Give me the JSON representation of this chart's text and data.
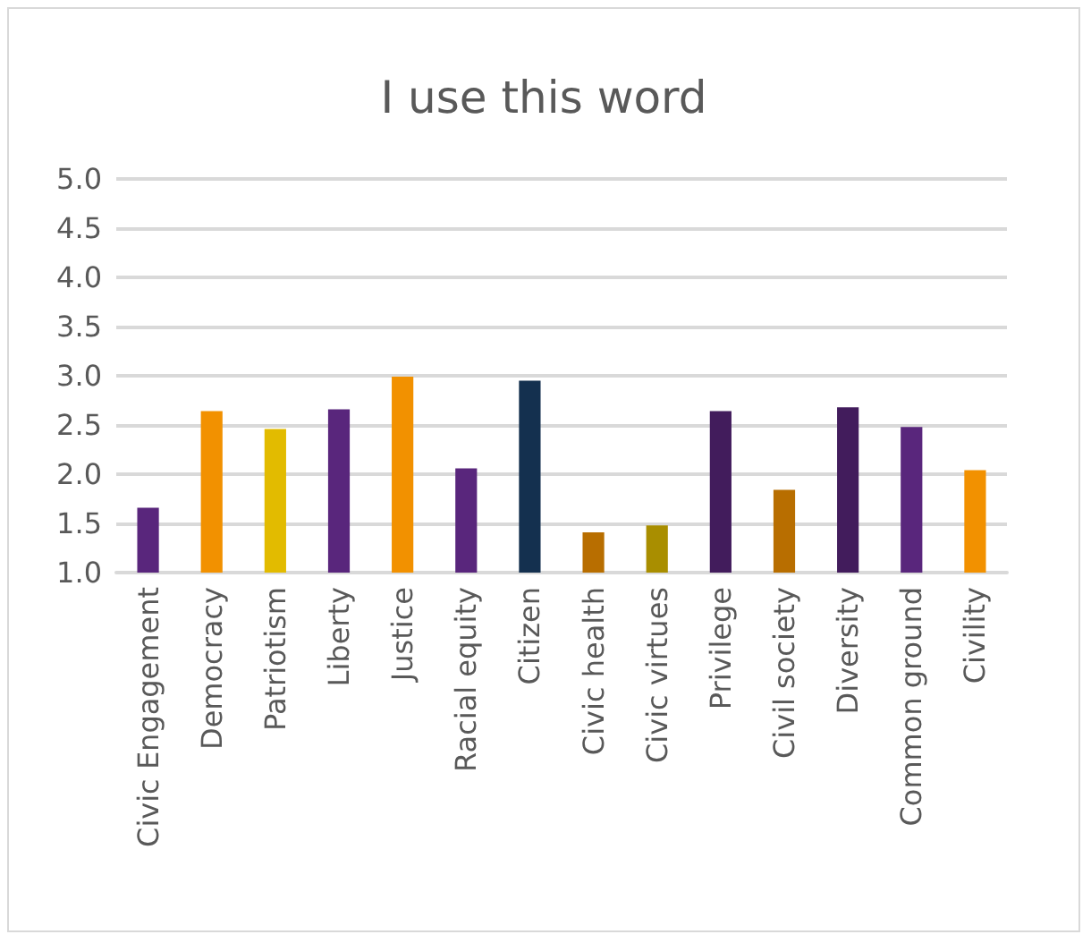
{
  "chart_data": {
    "type": "bar",
    "title": "I use this word",
    "categories": [
      "Civic Engagement",
      "Democracy",
      "Patriotism",
      "Liberty",
      "Justice",
      "Racial equity",
      "Citizen",
      "Civic health",
      "Civic virtues",
      "Privilege",
      "Civil society",
      "Diversity",
      "Common ground",
      "Civility"
    ],
    "values": [
      1.66,
      2.64,
      2.46,
      2.66,
      2.99,
      2.06,
      2.95,
      1.41,
      1.48,
      2.64,
      1.84,
      2.68,
      2.48,
      2.04
    ],
    "colors": [
      "#59267c",
      "#f29100",
      "#e2bb00",
      "#59267c",
      "#f29100",
      "#59267c",
      "#14304f",
      "#b86e00",
      "#a98e00",
      "#421c5c",
      "#b86e00",
      "#421c5c",
      "#59267c",
      "#f29100"
    ],
    "ylim": [
      1.0,
      5.0
    ],
    "yticks": [
      {
        "value": 1,
        "label": "1.0"
      },
      {
        "value": 1.5,
        "label": "1.5"
      },
      {
        "value": 2,
        "label": "2.0"
      },
      {
        "value": 2.5,
        "label": "2.5"
      },
      {
        "value": 3,
        "label": "3.0"
      },
      {
        "value": 3.5,
        "label": "3.5"
      },
      {
        "value": 4,
        "label": "4.0"
      },
      {
        "value": 4.5,
        "label": "4.5"
      },
      {
        "value": 5,
        "label": "5.0"
      }
    ],
    "grid": "y"
  }
}
